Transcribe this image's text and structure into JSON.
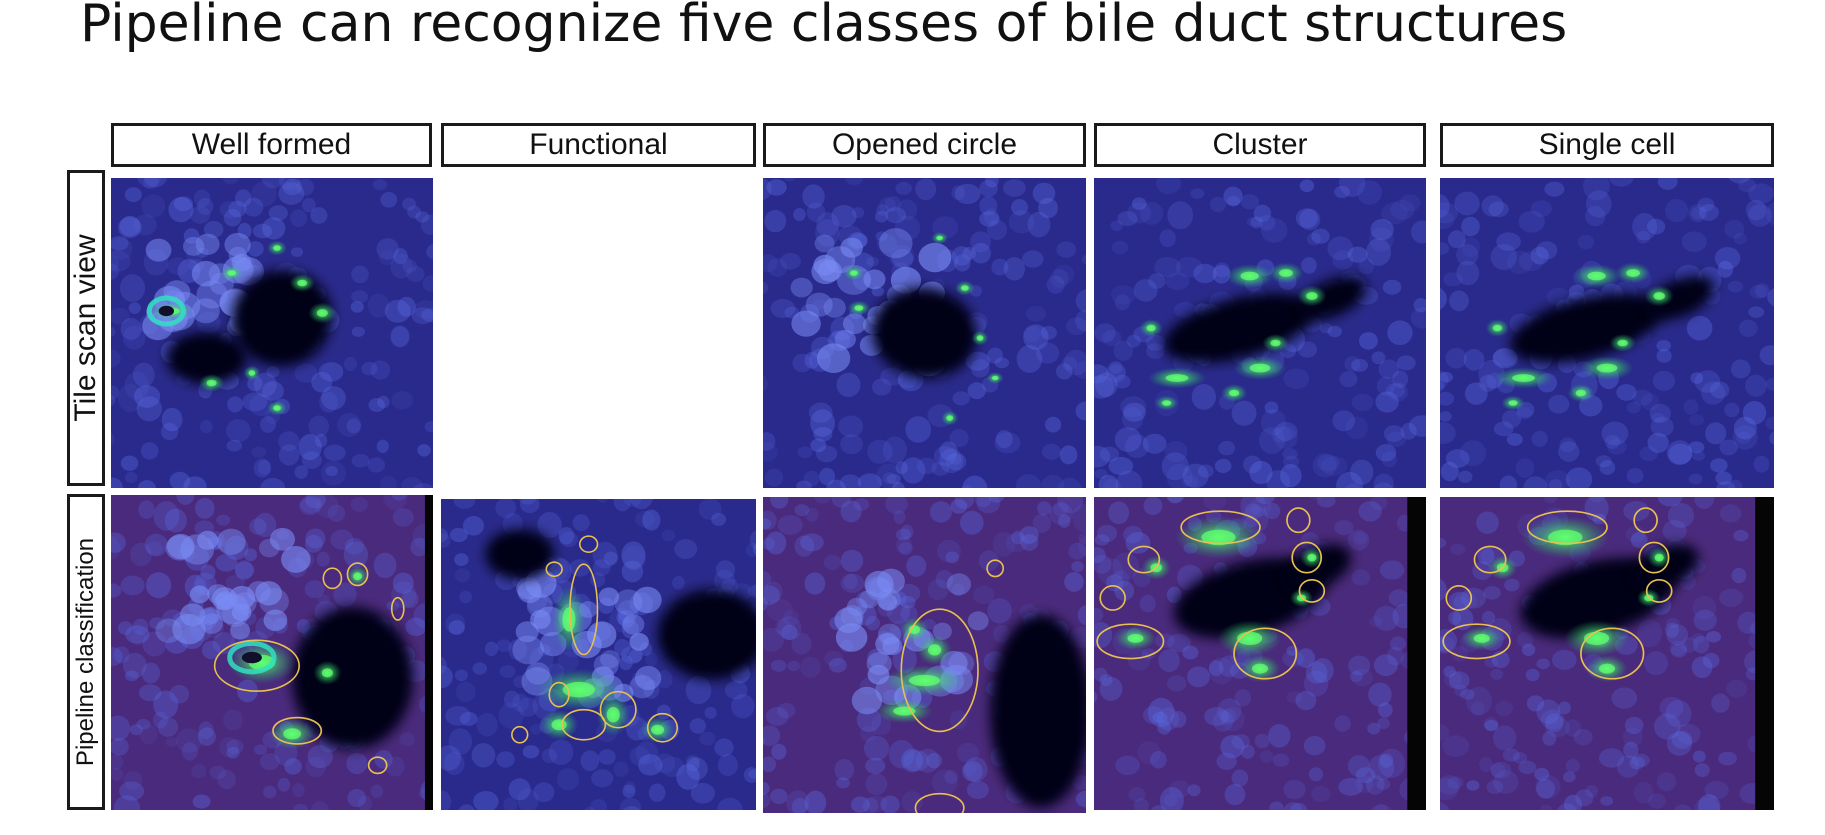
{
  "slide": {
    "title": "Pipeline can recognize five classes of bile duct structures"
  },
  "figure": {
    "columns": [
      "Well formed",
      "Functional",
      "Opened circle",
      "Cluster",
      "Single cell"
    ],
    "rows": [
      "Tile scan view",
      "Pipeline classification"
    ]
  },
  "colors": {
    "tissue_blue": "#2a2a8c",
    "tissue_magenta": "#4a2a7c",
    "nucleus_blue": "#5a6ae0",
    "marker_green": "#60ff70",
    "outline_yellow": "#e8c050",
    "lumen_dark": "#040414"
  }
}
